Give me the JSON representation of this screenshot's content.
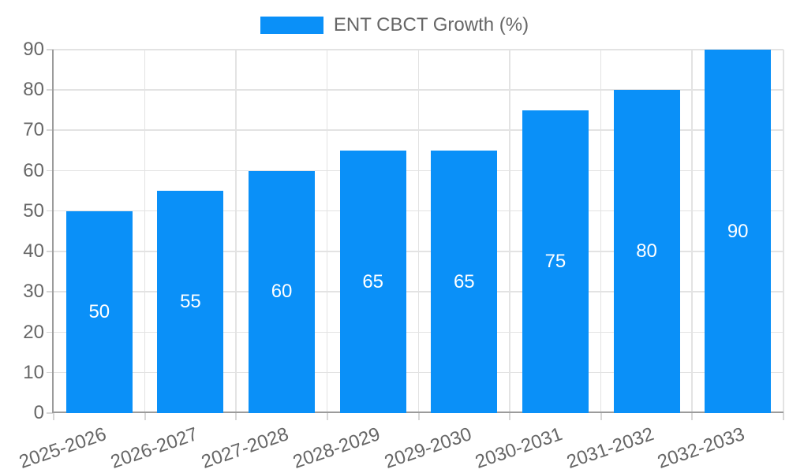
{
  "legend": {
    "label": "ENT CBCT Growth (%)",
    "swatch_color": "#0A90F8",
    "position": "top"
  },
  "chart_data": {
    "type": "bar",
    "title": "",
    "categories": [
      "2025-2026",
      "2026-2027",
      "2027-2028",
      "2028-2029",
      "2029-2030",
      "2030-2031",
      "2031-2032",
      "2032-2033"
    ],
    "series": [
      {
        "name": "ENT CBCT Growth (%)",
        "values": [
          50,
          55,
          60,
          65,
          65,
          75,
          80,
          90
        ],
        "color": "#0A90F8"
      }
    ],
    "ylabel": "",
    "xlabel": "",
    "ylim": [
      0,
      90
    ],
    "ytick_step": 10,
    "yticks": [
      0,
      10,
      20,
      30,
      40,
      50,
      60,
      70,
      80,
      90
    ],
    "grid": "both",
    "legend_position": "top",
    "x_label_rotation_deg": -19,
    "data_labels": {
      "show": true,
      "position": "center",
      "color": "#FFFFFF"
    }
  },
  "colors": {
    "bar": "#0A90F8",
    "text": "#666666",
    "grid": "#E3E3E3",
    "axis": "#9B9B9B",
    "tick": "#D7D7D7",
    "background": "#FFFFFF",
    "data_label": "#FFFFFF"
  }
}
